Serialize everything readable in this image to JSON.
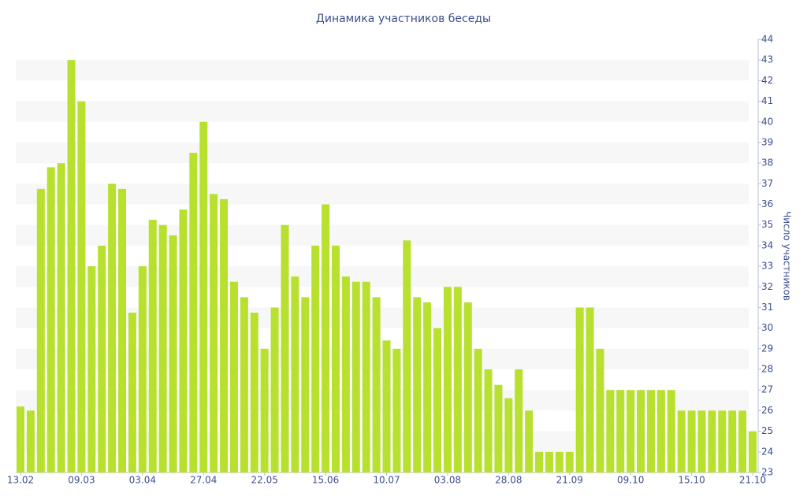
{
  "chart_data": {
    "type": "bar",
    "title": "Динамика участников беседы",
    "y_label": "Число участников",
    "categories": [
      "13.02",
      null,
      null,
      null,
      null,
      null,
      "09.03",
      null,
      null,
      null,
      null,
      null,
      "03.04",
      null,
      null,
      null,
      null,
      null,
      "27.04",
      null,
      null,
      null,
      null,
      null,
      "22.05",
      null,
      null,
      null,
      null,
      null,
      "15.06",
      null,
      null,
      null,
      null,
      null,
      "10.07",
      null,
      null,
      null,
      null,
      null,
      "03.08",
      null,
      null,
      null,
      null,
      null,
      "28.08",
      null,
      null,
      null,
      null,
      null,
      "21.09",
      null,
      null,
      null,
      null,
      null,
      "09.10",
      null,
      null,
      null,
      null,
      null,
      "15.10",
      null,
      null,
      null,
      null,
      null,
      "21.10"
    ],
    "values": [
      26.2,
      26,
      36.75,
      37.8,
      38,
      43,
      41,
      33,
      34,
      37,
      36.75,
      30.75,
      33,
      35.25,
      35,
      34.5,
      35.75,
      38.5,
      40,
      36.5,
      36.25,
      32.25,
      31.5,
      30.75,
      29,
      31,
      35,
      32.5,
      31.5,
      34,
      36,
      34,
      32.5,
      32.25,
      32.25,
      31.5,
      29.4,
      29,
      34.25,
      31.5,
      31.25,
      30,
      32,
      32,
      31.25,
      29,
      28,
      27.25,
      26.6,
      28,
      26,
      24,
      24,
      24,
      24,
      31,
      31,
      29,
      27,
      27,
      27,
      27,
      27,
      27,
      27,
      26,
      26,
      26,
      26,
      26,
      26,
      26,
      25
    ],
    "color": "#b8e02e",
    "ylim": [
      23,
      44
    ],
    "yticks": [
      23,
      24,
      25,
      26,
      27,
      28,
      29,
      30,
      31,
      32,
      33,
      34,
      35,
      36,
      37,
      38,
      39,
      40,
      41,
      42,
      43,
      44
    ],
    "grid": "bands",
    "y_axis_side": "right"
  }
}
